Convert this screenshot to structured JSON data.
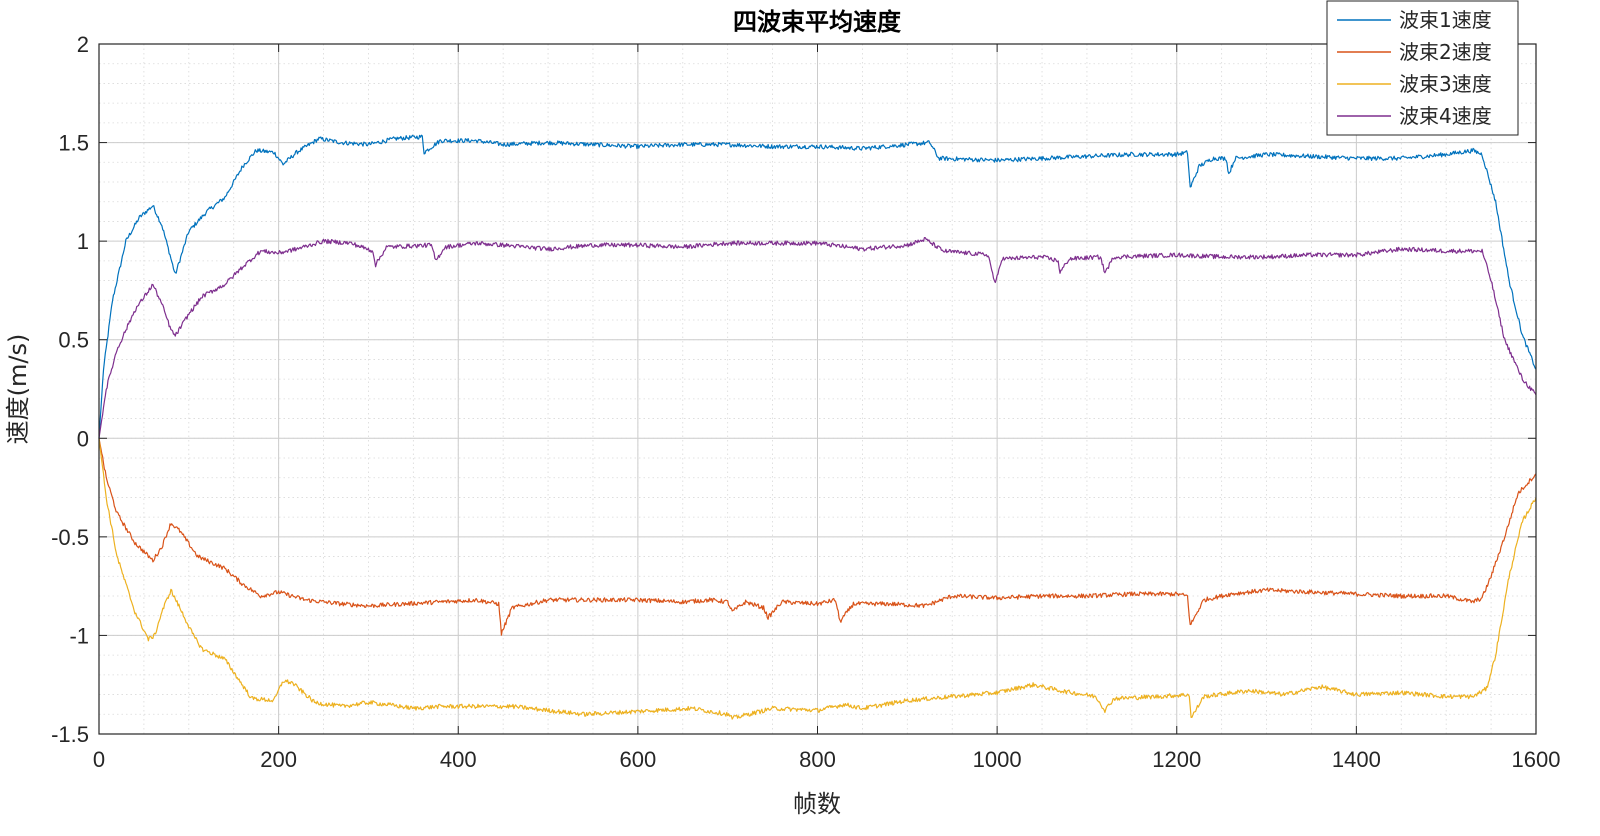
{
  "chart_data": {
    "type": "line",
    "title": "四波束平均速度",
    "xlabel": "帧数",
    "ylabel": "速度(m/s)",
    "xlim": [
      0,
      1600
    ],
    "ylim": [
      -1.5,
      2
    ],
    "xticks": [
      0,
      200,
      400,
      600,
      800,
      1000,
      1200,
      1400,
      1600
    ],
    "xtick_labels": [
      "0",
      "200",
      "400",
      "600",
      "800",
      "1000",
      "1200",
      "1400",
      "1600"
    ],
    "yticks": [
      2,
      1.5,
      1,
      0.5,
      0,
      -0.5,
      -1,
      -1.5
    ],
    "ytick_labels": [
      "2",
      "1.5",
      "1",
      "0.5",
      "0",
      "-0.5",
      "-1",
      "-1.5"
    ],
    "grid": true,
    "minor_grid": true,
    "legend_position": "top-right",
    "series": [
      {
        "name": "波束1速度",
        "color": "#0072BD",
        "points": [
          [
            0,
            0
          ],
          [
            5,
            0.35
          ],
          [
            15,
            0.7
          ],
          [
            30,
            1.0
          ],
          [
            45,
            1.12
          ],
          [
            60,
            1.18
          ],
          [
            70,
            1.08
          ],
          [
            85,
            0.83
          ],
          [
            100,
            1.05
          ],
          [
            120,
            1.15
          ],
          [
            140,
            1.22
          ],
          [
            160,
            1.38
          ],
          [
            175,
            1.46
          ],
          [
            195,
            1.45
          ],
          [
            205,
            1.39
          ],
          [
            220,
            1.45
          ],
          [
            245,
            1.52
          ],
          [
            270,
            1.5
          ],
          [
            300,
            1.49
          ],
          [
            330,
            1.52
          ],
          [
            360,
            1.53
          ],
          [
            362,
            1.45
          ],
          [
            380,
            1.51
          ],
          [
            420,
            1.51
          ],
          [
            450,
            1.49
          ],
          [
            500,
            1.5
          ],
          [
            550,
            1.49
          ],
          [
            600,
            1.48
          ],
          [
            650,
            1.49
          ],
          [
            700,
            1.49
          ],
          [
            750,
            1.48
          ],
          [
            800,
            1.48
          ],
          [
            850,
            1.47
          ],
          [
            900,
            1.49
          ],
          [
            925,
            1.5
          ],
          [
            935,
            1.42
          ],
          [
            1000,
            1.41
          ],
          [
            1050,
            1.42
          ],
          [
            1100,
            1.43
          ],
          [
            1150,
            1.44
          ],
          [
            1200,
            1.44
          ],
          [
            1212,
            1.45
          ],
          [
            1215,
            1.27
          ],
          [
            1225,
            1.38
          ],
          [
            1240,
            1.42
          ],
          [
            1255,
            1.42
          ],
          [
            1258,
            1.34
          ],
          [
            1265,
            1.42
          ],
          [
            1300,
            1.44
          ],
          [
            1350,
            1.43
          ],
          [
            1400,
            1.42
          ],
          [
            1450,
            1.42
          ],
          [
            1500,
            1.44
          ],
          [
            1530,
            1.46
          ],
          [
            1540,
            1.44
          ],
          [
            1555,
            1.2
          ],
          [
            1570,
            0.8
          ],
          [
            1585,
            0.52
          ],
          [
            1600,
            0.35
          ]
        ]
      },
      {
        "name": "波束2速度",
        "color": "#D95319",
        "points": [
          [
            0,
            0
          ],
          [
            8,
            -0.2
          ],
          [
            20,
            -0.38
          ],
          [
            40,
            -0.53
          ],
          [
            60,
            -0.62
          ],
          [
            70,
            -0.55
          ],
          [
            80,
            -0.43
          ],
          [
            90,
            -0.47
          ],
          [
            110,
            -0.6
          ],
          [
            140,
            -0.66
          ],
          [
            160,
            -0.74
          ],
          [
            180,
            -0.8
          ],
          [
            200,
            -0.78
          ],
          [
            230,
            -0.82
          ],
          [
            270,
            -0.84
          ],
          [
            300,
            -0.85
          ],
          [
            340,
            -0.84
          ],
          [
            380,
            -0.83
          ],
          [
            420,
            -0.82
          ],
          [
            445,
            -0.84
          ],
          [
            448,
            -0.99
          ],
          [
            460,
            -0.86
          ],
          [
            500,
            -0.82
          ],
          [
            550,
            -0.82
          ],
          [
            600,
            -0.82
          ],
          [
            650,
            -0.83
          ],
          [
            680,
            -0.82
          ],
          [
            700,
            -0.83
          ],
          [
            705,
            -0.88
          ],
          [
            720,
            -0.83
          ],
          [
            740,
            -0.86
          ],
          [
            745,
            -0.91
          ],
          [
            760,
            -0.83
          ],
          [
            800,
            -0.84
          ],
          [
            820,
            -0.82
          ],
          [
            825,
            -0.93
          ],
          [
            840,
            -0.84
          ],
          [
            880,
            -0.84
          ],
          [
            920,
            -0.85
          ],
          [
            950,
            -0.8
          ],
          [
            1000,
            -0.81
          ],
          [
            1050,
            -0.8
          ],
          [
            1100,
            -0.8
          ],
          [
            1150,
            -0.79
          ],
          [
            1200,
            -0.79
          ],
          [
            1212,
            -0.8
          ],
          [
            1215,
            -0.95
          ],
          [
            1230,
            -0.82
          ],
          [
            1260,
            -0.79
          ],
          [
            1300,
            -0.77
          ],
          [
            1350,
            -0.78
          ],
          [
            1400,
            -0.79
          ],
          [
            1450,
            -0.8
          ],
          [
            1500,
            -0.8
          ],
          [
            1530,
            -0.83
          ],
          [
            1540,
            -0.81
          ],
          [
            1550,
            -0.7
          ],
          [
            1565,
            -0.5
          ],
          [
            1580,
            -0.28
          ],
          [
            1600,
            -0.18
          ]
        ]
      },
      {
        "name": "波束3速度",
        "color": "#EDB120",
        "points": [
          [
            0,
            0
          ],
          [
            8,
            -0.3
          ],
          [
            20,
            -0.6
          ],
          [
            40,
            -0.88
          ],
          [
            55,
            -1.02
          ],
          [
            62,
            -1.0
          ],
          [
            70,
            -0.88
          ],
          [
            80,
            -0.77
          ],
          [
            90,
            -0.86
          ],
          [
            105,
            -1.0
          ],
          [
            115,
            -1.07
          ],
          [
            140,
            -1.12
          ],
          [
            155,
            -1.22
          ],
          [
            170,
            -1.32
          ],
          [
            195,
            -1.33
          ],
          [
            205,
            -1.23
          ],
          [
            215,
            -1.24
          ],
          [
            240,
            -1.34
          ],
          [
            270,
            -1.36
          ],
          [
            300,
            -1.34
          ],
          [
            320,
            -1.35
          ],
          [
            350,
            -1.37
          ],
          [
            380,
            -1.36
          ],
          [
            420,
            -1.36
          ],
          [
            460,
            -1.36
          ],
          [
            500,
            -1.38
          ],
          [
            540,
            -1.4
          ],
          [
            580,
            -1.39
          ],
          [
            620,
            -1.38
          ],
          [
            660,
            -1.37
          ],
          [
            700,
            -1.4
          ],
          [
            705,
            -1.42
          ],
          [
            750,
            -1.37
          ],
          [
            800,
            -1.38
          ],
          [
            830,
            -1.35
          ],
          [
            850,
            -1.37
          ],
          [
            900,
            -1.33
          ],
          [
            950,
            -1.31
          ],
          [
            1000,
            -1.29
          ],
          [
            1040,
            -1.25
          ],
          [
            1070,
            -1.28
          ],
          [
            1110,
            -1.31
          ],
          [
            1120,
            -1.38
          ],
          [
            1130,
            -1.32
          ],
          [
            1180,
            -1.31
          ],
          [
            1214,
            -1.3
          ],
          [
            1216,
            -1.42
          ],
          [
            1230,
            -1.31
          ],
          [
            1280,
            -1.28
          ],
          [
            1320,
            -1.3
          ],
          [
            1360,
            -1.26
          ],
          [
            1400,
            -1.3
          ],
          [
            1450,
            -1.29
          ],
          [
            1500,
            -1.31
          ],
          [
            1530,
            -1.31
          ],
          [
            1545,
            -1.27
          ],
          [
            1555,
            -1.1
          ],
          [
            1570,
            -0.7
          ],
          [
            1585,
            -0.42
          ],
          [
            1600,
            -0.3
          ]
        ]
      },
      {
        "name": "波束4速度",
        "color": "#7E2F8E",
        "points": [
          [
            0,
            0
          ],
          [
            8,
            0.25
          ],
          [
            20,
            0.45
          ],
          [
            40,
            0.65
          ],
          [
            60,
            0.78
          ],
          [
            70,
            0.68
          ],
          [
            80,
            0.55
          ],
          [
            85,
            0.52
          ],
          [
            100,
            0.63
          ],
          [
            115,
            0.72
          ],
          [
            140,
            0.78
          ],
          [
            160,
            0.87
          ],
          [
            180,
            0.95
          ],
          [
            200,
            0.94
          ],
          [
            220,
            0.96
          ],
          [
            250,
            1.0
          ],
          [
            280,
            0.99
          ],
          [
            305,
            0.95
          ],
          [
            308,
            0.88
          ],
          [
            320,
            0.97
          ],
          [
            370,
            0.98
          ],
          [
            375,
            0.9
          ],
          [
            385,
            0.97
          ],
          [
            420,
            0.99
          ],
          [
            450,
            0.98
          ],
          [
            500,
            0.96
          ],
          [
            550,
            0.98
          ],
          [
            600,
            0.98
          ],
          [
            650,
            0.97
          ],
          [
            700,
            0.99
          ],
          [
            750,
            0.99
          ],
          [
            800,
            0.99
          ],
          [
            850,
            0.96
          ],
          [
            900,
            0.98
          ],
          [
            920,
            1.01
          ],
          [
            940,
            0.95
          ],
          [
            990,
            0.93
          ],
          [
            998,
            0.78
          ],
          [
            1005,
            0.91
          ],
          [
            1050,
            0.92
          ],
          [
            1068,
            0.9
          ],
          [
            1070,
            0.84
          ],
          [
            1080,
            0.91
          ],
          [
            1115,
            0.92
          ],
          [
            1120,
            0.84
          ],
          [
            1130,
            0.92
          ],
          [
            1200,
            0.93
          ],
          [
            1250,
            0.92
          ],
          [
            1300,
            0.92
          ],
          [
            1350,
            0.93
          ],
          [
            1400,
            0.93
          ],
          [
            1450,
            0.96
          ],
          [
            1500,
            0.95
          ],
          [
            1540,
            0.95
          ],
          [
            1550,
            0.8
          ],
          [
            1565,
            0.5
          ],
          [
            1585,
            0.3
          ],
          [
            1600,
            0.22
          ]
        ]
      }
    ]
  }
}
